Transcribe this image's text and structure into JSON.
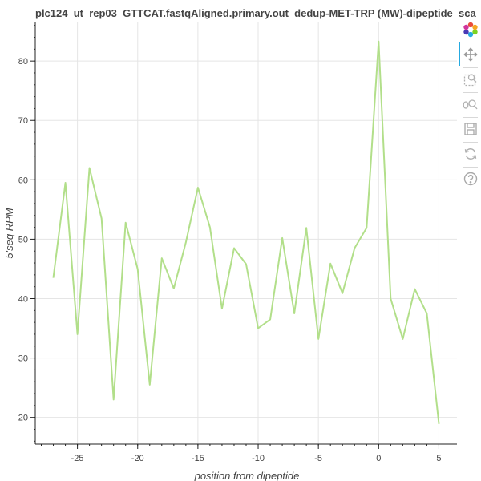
{
  "chart_data": {
    "type": "line",
    "title": "plc124_ut_rep03_GTTCAT.fastqAligned.primary.out_dedup-MET-TRP (MW)-dipeptide_sca",
    "xlabel": "position from dipeptide",
    "ylabel": "5'seq RPM",
    "xlim": [
      -28.5,
      6.5
    ],
    "ylim": [
      15.5,
      86.5
    ],
    "x_ticks": [
      -25,
      -20,
      -15,
      -10,
      -5,
      0,
      5
    ],
    "y_ticks": [
      20,
      30,
      40,
      50,
      60,
      70,
      80
    ],
    "x_tick_labels": [
      "-25",
      "-20",
      "-15",
      "-10",
      "-5",
      "0",
      "5"
    ],
    "y_tick_labels": [
      "20",
      "30",
      "40",
      "50",
      "60",
      "70",
      "80"
    ],
    "grid": true,
    "legend": "none",
    "line_color": "#b2df8a",
    "series": [
      {
        "x": [
          -27,
          -26,
          -25,
          -24,
          -23,
          -22,
          -21,
          -20,
          -19,
          -18,
          -17,
          -16,
          -15,
          -14,
          -13,
          -12,
          -11,
          -10,
          -9,
          -8,
          -7,
          -6,
          -5,
          -4,
          -3,
          -2,
          -1,
          0,
          1,
          2,
          3,
          4,
          5
        ],
        "values": [
          43.5,
          59.5,
          34.0,
          62.0,
          53.5,
          23.0,
          52.8,
          45.0,
          25.5,
          46.8,
          41.7,
          49.5,
          58.7,
          52.0,
          38.3,
          48.5,
          45.8,
          35.0,
          36.5,
          50.2,
          37.5,
          51.9,
          33.2,
          45.9,
          40.9,
          48.5,
          51.9,
          83.3,
          40.0,
          33.2,
          41.6,
          37.5,
          18.9
        ]
      }
    ]
  },
  "toolbar": {
    "tools": [
      {
        "name": "bokeh-logo-icon",
        "active": false
      },
      {
        "name": "pan-tool-icon",
        "active": true
      },
      {
        "name": "box-zoom-icon",
        "active": false
      },
      {
        "name": "wheel-zoom-icon",
        "active": false
      },
      {
        "name": "save-icon",
        "active": false
      },
      {
        "name": "reset-icon",
        "active": false
      },
      {
        "name": "help-icon",
        "active": false
      }
    ],
    "active_color": "#26aae1",
    "icon_color": "#bbbbbb"
  }
}
